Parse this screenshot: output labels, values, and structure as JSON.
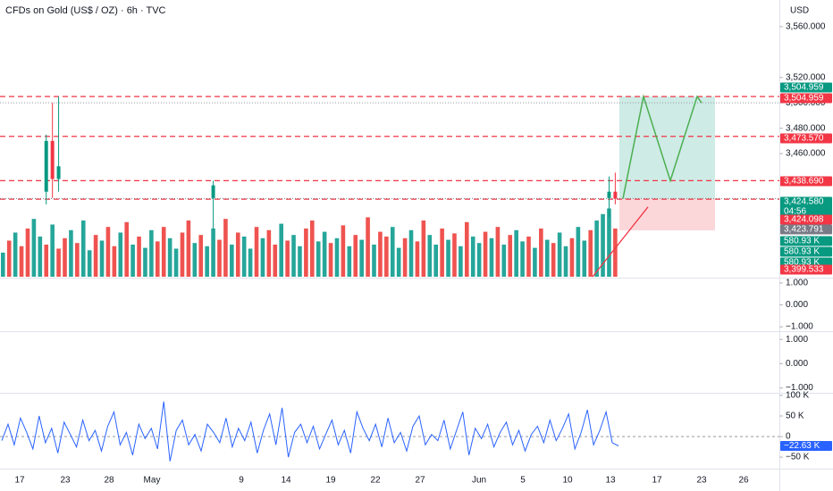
{
  "chart_data": [
    {
      "type": "candlestick",
      "title": "CFDs on Gold (US$ / OZ) · 6h · TVC",
      "currency": "USD",
      "ylim": [
        3363,
        3581
      ],
      "yticks": [
        {
          "value": 3560,
          "label": "3,560.000"
        },
        {
          "value": 3520,
          "label": "3,520.000"
        },
        {
          "value": 3500,
          "label": "3,500.000"
        },
        {
          "value": 3480,
          "label": "3,480.000"
        },
        {
          "value": 3460,
          "label": "3,460.000"
        }
      ],
      "categories": [
        "17",
        "23",
        "28",
        "May",
        "9",
        "14",
        "19",
        "22",
        "27",
        "Jun",
        "5",
        "10",
        "13",
        "17",
        "23",
        "26"
      ],
      "candles": {
        "open": [
          3430,
          3470,
          3440,
          3425,
          3425,
          3430
        ],
        "high": [
          3475,
          3500,
          3505,
          3438.69,
          3442,
          3445
        ],
        "low": [
          3420,
          3425,
          3430,
          3400,
          3410,
          3420
        ],
        "close": [
          3470,
          3440,
          3450,
          3435,
          3430,
          3424.58
        ]
      },
      "levels": [
        3504.959,
        3473.57,
        3438.69,
        3424.098
      ],
      "level_color": "#f23645",
      "last_price": 3424.58,
      "position": {
        "target": 3504.959,
        "entry": 3424.58,
        "stop": 3399.533
      },
      "projection": [
        3424.58,
        3504.959,
        3438.69,
        3504.959,
        3500
      ],
      "projection_color": "#4caf50",
      "trendline": [
        3363,
        3418
      ],
      "trendline_color": "#f23645",
      "volume": {
        "ylim": [
          0,
          100
        ],
        "values": [
          30,
          45,
          55,
          38,
          60,
          72,
          50,
          40,
          65,
          35,
          48,
          58,
          42,
          70,
          33,
          52,
          45,
          62,
          38,
          55,
          68,
          40,
          50,
          36,
          58,
          44,
          62,
          48,
          35,
          55,
          70,
          42,
          52,
          38,
          60,
          46,
          72,
          40,
          55,
          50,
          35,
          62,
          48,
          58,
          40,
          66,
          45,
          52,
          38,
          60,
          70,
          44,
          56,
          42,
          48,
          64,
          38,
          52,
          46,
          74,
          40,
          56,
          50,
          62,
          36,
          48,
          58,
          44,
          70,
          52,
          40,
          60,
          46,
          54,
          38,
          68,
          50,
          42,
          56,
          48,
          62,
          40,
          52,
          58,
          44,
          50,
          36,
          60,
          46,
          42,
          55,
          38,
          48,
          62,
          45,
          58,
          70,
          78,
          85,
          60
        ],
        "colors": [
          "#26a69a",
          "#ef5350",
          "#26a69a",
          "#ef5350",
          "#ef5350",
          "#26a69a",
          "#26a69a",
          "#ef5350",
          "#26a69a",
          "#ef5350",
          "#ef5350",
          "#26a69a",
          "#ef5350",
          "#26a69a",
          "#26a69a",
          "#ef5350",
          "#26a69a",
          "#ef5350",
          "#ef5350",
          "#26a69a",
          "#ef5350",
          "#26a69a",
          "#ef5350",
          "#26a69a",
          "#26a69a",
          "#ef5350",
          "#ef5350",
          "#26a69a",
          "#26a69a",
          "#ef5350",
          "#ef5350",
          "#26a69a",
          "#ef5350",
          "#26a69a",
          "#26a69a",
          "#ef5350",
          "#ef5350",
          "#26a69a",
          "#ef5350",
          "#26a69a",
          "#26a69a",
          "#ef5350",
          "#26a69a",
          "#ef5350",
          "#ef5350",
          "#26a69a",
          "#ef5350",
          "#26a69a",
          "#26a69a",
          "#ef5350",
          "#ef5350",
          "#26a69a",
          "#26a69a",
          "#ef5350",
          "#26a69a",
          "#ef5350",
          "#26a69a",
          "#ef5350",
          "#26a69a",
          "#ef5350",
          "#26a69a",
          "#ef5350",
          "#ef5350",
          "#26a69a",
          "#26a69a",
          "#ef5350",
          "#26a69a",
          "#ef5350",
          "#ef5350",
          "#26a69a",
          "#26a69a",
          "#ef5350",
          "#26a69a",
          "#ef5350",
          "#26a69a",
          "#ef5350",
          "#26a69a",
          "#26a69a",
          "#ef5350",
          "#26a69a",
          "#ef5350",
          "#26a69a",
          "#ef5350",
          "#26a69a",
          "#26a69a",
          "#ef5350",
          "#26a69a",
          "#ef5350",
          "#26a69a",
          "#ef5350",
          "#26a69a",
          "#26a69a",
          "#ef5350",
          "#26a69a",
          "#26a69a",
          "#ef5350",
          "#26a69a",
          "#26a69a",
          "#26a69a",
          "#ef5350"
        ]
      },
      "price_tags": [
        {
          "label": "3,504.959",
          "color": "#089981"
        },
        {
          "label": "3,504.959",
          "color": "#f23645"
        },
        {
          "label": "3,473.570",
          "color": "#f23645"
        },
        {
          "label": "3,438.690",
          "color": "#f23645"
        },
        {
          "label": "3,424.580",
          "sublabel": "04:56",
          "color": "#089981"
        },
        {
          "label": "3,424.098",
          "color": "#f23645"
        },
        {
          "label": "3,423.791",
          "color": "#787b86"
        },
        {
          "label": "580.93 K",
          "color": "#089981"
        },
        {
          "label": "580.93 K",
          "color": "#089981"
        },
        {
          "label": "580.93 K",
          "color": "#089981"
        },
        {
          "label": "3,399.533",
          "color": "#f23645"
        }
      ]
    },
    {
      "type": "indicator",
      "ylim": [
        -1.2,
        1.2
      ],
      "yticks": [
        {
          "value": 1,
          "label": "1.000"
        },
        {
          "value": 0,
          "label": "0.000"
        },
        {
          "value": -1,
          "label": "−1.000"
        }
      ]
    },
    {
      "type": "indicator",
      "ylim": [
        -1.2,
        1.3
      ],
      "yticks": [
        {
          "value": 1,
          "label": "1.000"
        },
        {
          "value": 0,
          "label": "0.000"
        },
        {
          "value": -1,
          "label": "−1.000"
        }
      ]
    },
    {
      "type": "line",
      "ylim": [
        -78000,
        102000
      ],
      "color": "#2962ff",
      "yticks": [
        {
          "value": 100000,
          "label": "100 K"
        },
        {
          "value": 50000,
          "label": "50 K"
        },
        0,
        {
          "value": -50000,
          "label": "−50 K"
        }
      ],
      "last_tag": {
        "value": -22630,
        "label": "−22.63 K"
      },
      "values": [
        -10000,
        30000,
        -20000,
        45000,
        10000,
        -30000,
        50000,
        -15000,
        20000,
        -40000,
        35000,
        5000,
        -25000,
        40000,
        -10000,
        15000,
        -35000,
        25000,
        60000,
        -20000,
        10000,
        -45000,
        30000,
        -5000,
        20000,
        -30000,
        85000,
        -60000,
        15000,
        40000,
        -20000,
        5000,
        -35000,
        30000,
        10000,
        -15000,
        45000,
        -25000,
        20000,
        -10000,
        35000,
        -40000,
        15000,
        55000,
        -20000,
        70000,
        -50000,
        10000,
        30000,
        -15000,
        25000,
        -30000,
        5000,
        40000,
        -20000,
        15000,
        -40000,
        60000,
        20000,
        -10000,
        30000,
        -25000,
        45000,
        -15000,
        10000,
        -35000,
        25000,
        50000,
        -20000,
        5000,
        -10000,
        40000,
        -30000,
        15000,
        60000,
        -45000,
        20000,
        -5000,
        30000,
        -25000,
        10000,
        35000,
        -20000,
        15000,
        -35000,
        5000,
        25000,
        -15000,
        40000,
        -10000,
        20000,
        55000,
        -30000,
        10000,
        65000,
        -20000,
        15000,
        60000,
        -15000,
        -22630
      ]
    }
  ]
}
